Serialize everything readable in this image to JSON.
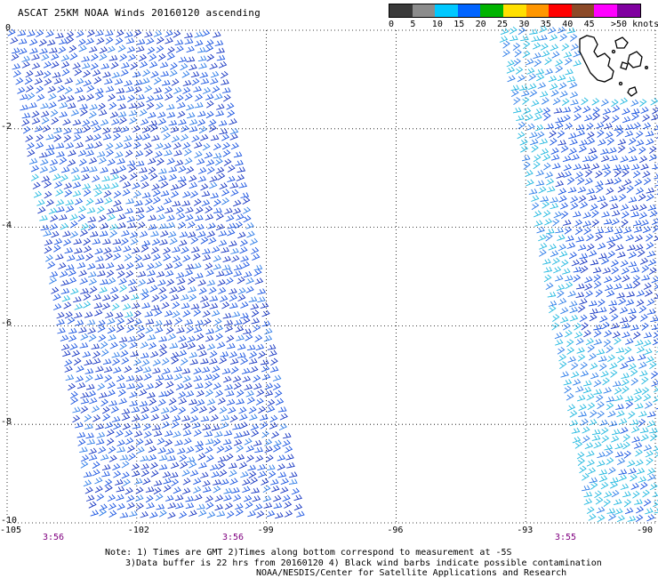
{
  "title": "ASCAT 25KM NOAA Winds 20160120 ascending",
  "legend": {
    "labels": [
      "0",
      "5",
      "10",
      "15",
      "20",
      "25",
      "30",
      "35",
      "40",
      "45",
      ">50 knots"
    ],
    "colors": [
      "#3a3a3a",
      "#8c8c8c",
      "#00c8ff",
      "#0064ff",
      "#00b400",
      "#ffe000",
      "#ff9600",
      "#ff0000",
      "#8c4a28",
      "#ff00ff",
      "#8000a0"
    ]
  },
  "axes": {
    "y_labels": [
      "0",
      "-2",
      "-4",
      "-6",
      "-8",
      "-10"
    ],
    "x_labels": [
      "-105",
      "-102",
      "-99",
      "-96",
      "-93",
      "-90"
    ],
    "time_labels": [
      "3:56",
      "3:56",
      "3:55"
    ]
  },
  "notes": {
    "line1": "Note: 1) Times are GMT 2)Times along bottom correspond to measurement at -5S",
    "line2": "3)Data buffer is 22 hrs from 20160120 4) Black wind barbs indicate possible contamination",
    "line3": "NOAA/NESDIS/Center for Satellite Applications and Research"
  },
  "map": {
    "lon_range": [
      -105,
      -90
    ],
    "lat_range": [
      -10,
      0
    ],
    "grid": true,
    "swaths": [
      "left swath approx -105 to -99 W",
      "right swath approx -93 to -90 W"
    ],
    "barb_colors": [
      "#1030c0",
      "#1450e0",
      "#2a7ae8",
      "#20b8e0"
    ],
    "land": "Galapagos Islands outline, top-right"
  }
}
